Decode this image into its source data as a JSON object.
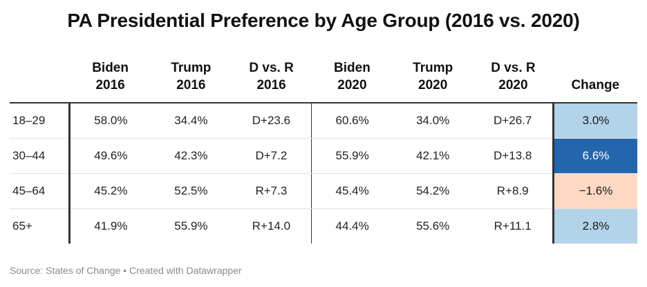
{
  "title": "PA Presidential Preference by Age Group (2016 vs. 2020)",
  "source": "Source: States of Change • Created with Datawrapper",
  "colors": {
    "change_light_blue": "#b3d3e8",
    "change_dark_blue": "#2466ad",
    "change_peach": "#fdd8c3"
  },
  "headers": [
    {
      "line1": "",
      "line2": ""
    },
    {
      "line1": "Biden",
      "line2": "2016"
    },
    {
      "line1": "Trump",
      "line2": "2016"
    },
    {
      "line1": "D vs. R",
      "line2": "2016"
    },
    {
      "line1": "Biden",
      "line2": "2020"
    },
    {
      "line1": "Trump",
      "line2": "2020"
    },
    {
      "line1": "D vs. R",
      "line2": "2020"
    },
    {
      "line1": "",
      "line2": "Change"
    }
  ],
  "rows": [
    {
      "cells": [
        "18–29",
        "58.0%",
        "34.4%",
        "D+23.6",
        "60.6%",
        "34.0%",
        "D+26.7",
        "3.0%"
      ],
      "change_color": "#b3d3e8",
      "change_text": "#1a1a1a"
    },
    {
      "cells": [
        "30–44",
        "49.6%",
        "42.3%",
        "D+7.2",
        "55.9%",
        "42.1%",
        "D+13.8",
        "6.6%"
      ],
      "change_color": "#2466ad",
      "change_text": "#ffffff"
    },
    {
      "cells": [
        "45–64",
        "45.2%",
        "52.5%",
        "R+7.3",
        "45.4%",
        "54.2%",
        "R+8.9",
        "−1.6%"
      ],
      "change_color": "#fdd8c3",
      "change_text": "#1a1a1a"
    },
    {
      "cells": [
        "65+",
        "41.9%",
        "55.9%",
        "R+14.0",
        "44.4%",
        "55.6%",
        "R+11.1",
        "2.8%"
      ],
      "change_color": "#b3d3e8",
      "change_text": "#1a1a1a"
    }
  ],
  "chart_data": {
    "type": "table",
    "title": "PA Presidential Preference by Age Group (2016 vs. 2020)",
    "columns": [
      "",
      "Biden 2016",
      "Trump 2016",
      "D vs. R 2016",
      "Biden 2020",
      "Trump 2020",
      "D vs. R 2020",
      "Change"
    ],
    "rows": [
      [
        "18–29",
        "58.0%",
        "34.4%",
        "D+23.6",
        "60.6%",
        "34.0%",
        "D+26.7",
        "3.0%"
      ],
      [
        "30–44",
        "49.6%",
        "42.3%",
        "D+7.2",
        "55.9%",
        "42.1%",
        "D+13.8",
        "6.6%"
      ],
      [
        "45–64",
        "45.2%",
        "52.5%",
        "R+7.3",
        "45.4%",
        "54.2%",
        "R+8.9",
        "−1.6%"
      ],
      [
        "65+",
        "41.9%",
        "55.9%",
        "R+14.0",
        "44.4%",
        "55.6%",
        "R+11.1",
        "2.8%"
      ]
    ]
  }
}
